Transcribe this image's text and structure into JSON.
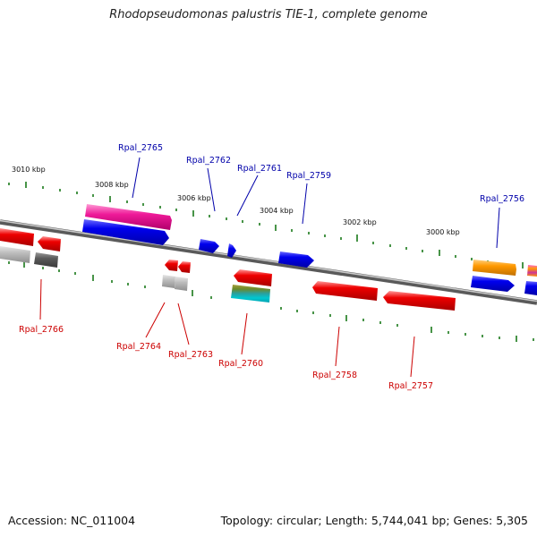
{
  "title": "Rhodopseudomonas palustris TIE-1, complete genome",
  "footer": {
    "accession": "Accession: NC_011004",
    "summary": "Topology: circular; Length: 5,744,041 bp; Genes: 5,305"
  },
  "scale_labels": [
    "3010 kbp",
    "3008 kbp",
    "3006 kbp",
    "3004 kbp",
    "3002 kbp",
    "3000 kbp"
  ],
  "gene_labels": {
    "forward": [
      "Rpal_2765",
      "Rpal_2762",
      "Rpal_2761",
      "Rpal_2759",
      "Rpal_2756"
    ],
    "reverse": [
      "Rpal_2766",
      "Rpal_2764",
      "Rpal_2763",
      "Rpal_2760",
      "Rpal_2758",
      "Rpal_2757"
    ]
  },
  "colors": {
    "forward_label": "#0000aa",
    "reverse_label": "#cc0000",
    "tick": "#1a7a1a",
    "backbone": "#8a8a8a"
  }
}
